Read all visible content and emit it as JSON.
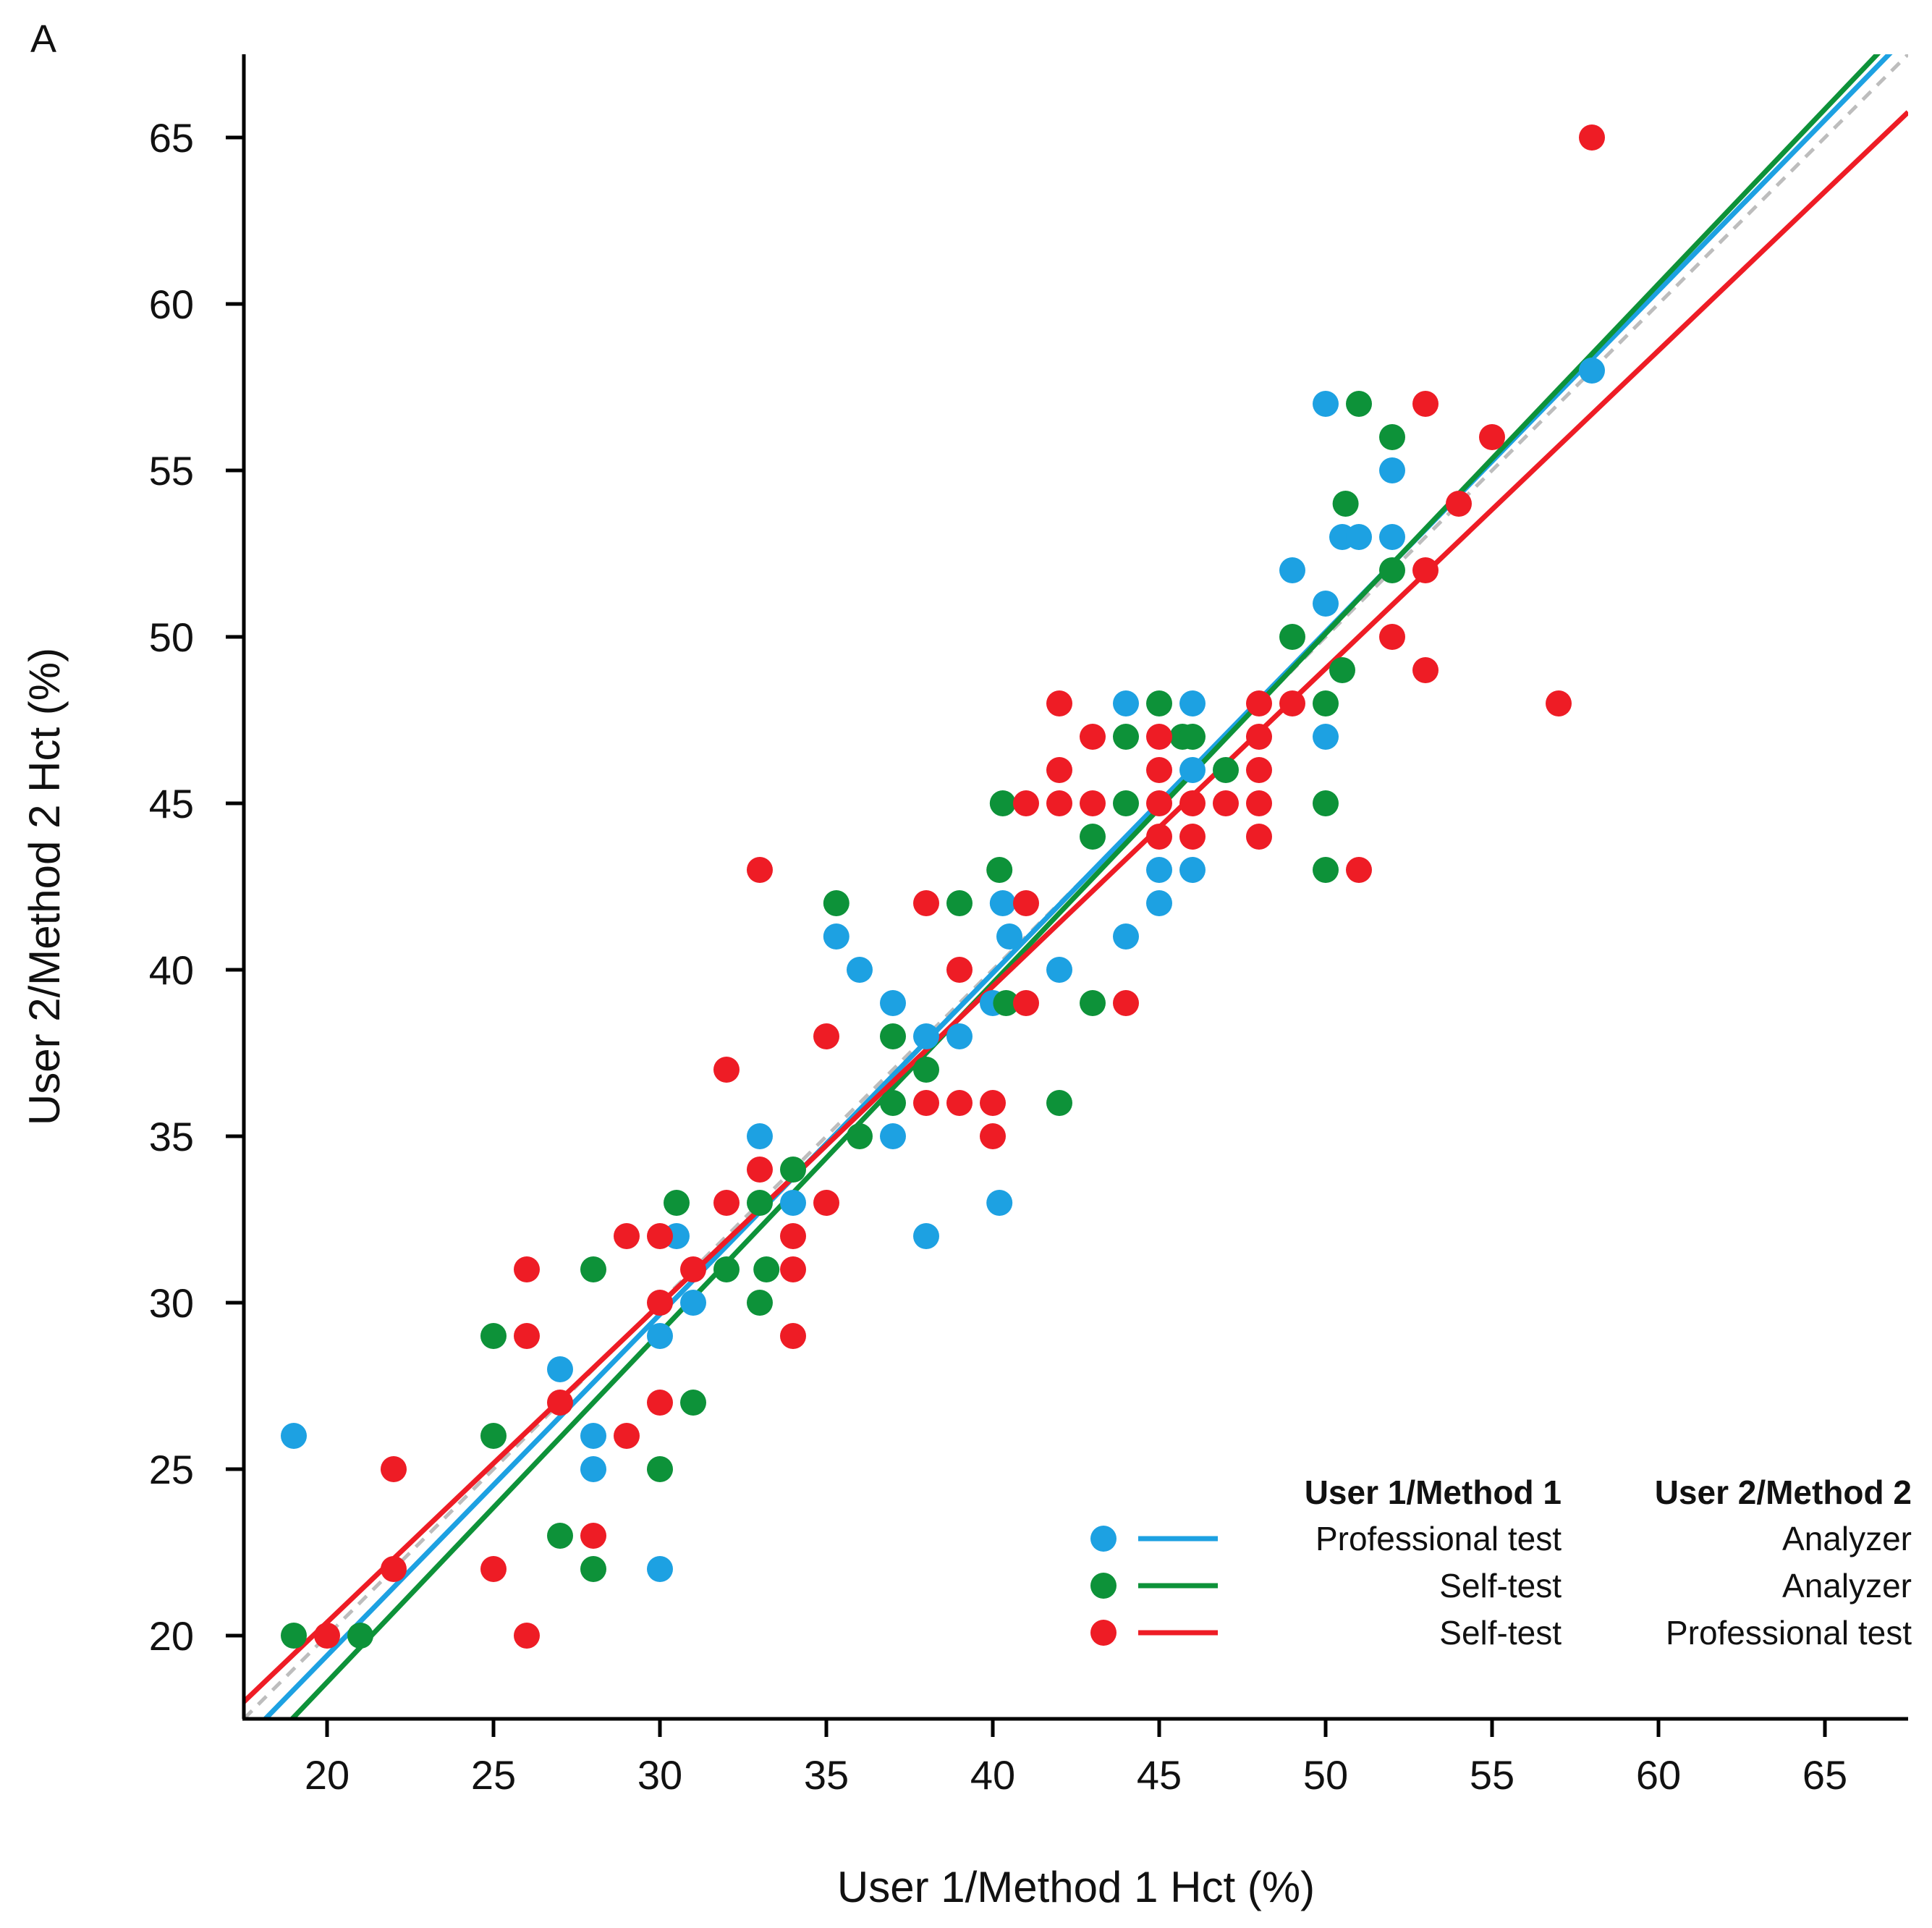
{
  "panel_label": "A",
  "chart_data": {
    "type": "scatter",
    "title": "",
    "xlabel": "User 1/Method 1 Hct (%)",
    "ylabel": "User 2/Method 2 Hct (%)",
    "xlim": [
      17.5,
      67.5
    ],
    "ylim": [
      17.5,
      67.5
    ],
    "xticks": [
      20,
      25,
      30,
      35,
      40,
      45,
      50,
      55,
      60,
      65
    ],
    "yticks": [
      20,
      25,
      30,
      35,
      40,
      45,
      50,
      55,
      60,
      65
    ],
    "identity_line": true,
    "legend": {
      "placement": "bottom-right",
      "header_col1": "User 1/Method 1",
      "header_col2": "User 2/Method 2"
    },
    "series": [
      {
        "name": "Professional test vs Analyzer",
        "method1": "Professional test",
        "method2": "Analyzer",
        "color": "#1da1e2",
        "fit": {
          "slope": 1.025,
          "intercept": -1.1
        },
        "points": [
          [
            19,
            26
          ],
          [
            27,
            28
          ],
          [
            28,
            26
          ],
          [
            28,
            25
          ],
          [
            30,
            29
          ],
          [
            30,
            22
          ],
          [
            30.5,
            32
          ],
          [
            31,
            30
          ],
          [
            33,
            35
          ],
          [
            34,
            33
          ],
          [
            35.3,
            41
          ],
          [
            36,
            40
          ],
          [
            37,
            39
          ],
          [
            37,
            35
          ],
          [
            38,
            38
          ],
          [
            38,
            32
          ],
          [
            39,
            38
          ],
          [
            40,
            39
          ],
          [
            40.2,
            33
          ],
          [
            40.3,
            42
          ],
          [
            40.5,
            41
          ],
          [
            42,
            40
          ],
          [
            44,
            48
          ],
          [
            44,
            41
          ],
          [
            45,
            43
          ],
          [
            45,
            42
          ],
          [
            46,
            48
          ],
          [
            46,
            46
          ],
          [
            46,
            43
          ],
          [
            49,
            52
          ],
          [
            50,
            57
          ],
          [
            50,
            51
          ],
          [
            50,
            47
          ],
          [
            50.5,
            53
          ],
          [
            51,
            53
          ],
          [
            52,
            55
          ],
          [
            52,
            53
          ],
          [
            58,
            58
          ]
        ]
      },
      {
        "name": "Self-test vs Analyzer",
        "method1": "Self-test",
        "method2": "Analyzer",
        "color": "#0d9239",
        "fit": {
          "slope": 1.05,
          "intercept": -2.4
        },
        "points": [
          [
            19,
            20
          ],
          [
            21,
            20
          ],
          [
            25,
            29
          ],
          [
            25,
            26
          ],
          [
            27,
            23
          ],
          [
            28,
            31
          ],
          [
            28,
            22
          ],
          [
            30,
            25
          ],
          [
            30.5,
            33
          ],
          [
            31,
            27
          ],
          [
            32,
            31
          ],
          [
            33,
            33
          ],
          [
            33,
            30
          ],
          [
            33.2,
            31
          ],
          [
            34,
            34
          ],
          [
            35.3,
            42
          ],
          [
            36,
            35
          ],
          [
            37,
            38
          ],
          [
            37,
            36
          ],
          [
            38,
            37
          ],
          [
            39,
            42
          ],
          [
            40.2,
            43
          ],
          [
            40.3,
            45
          ],
          [
            40.4,
            39
          ],
          [
            42,
            36
          ],
          [
            43,
            44
          ],
          [
            43,
            39
          ],
          [
            44,
            47
          ],
          [
            44,
            45
          ],
          [
            45,
            48
          ],
          [
            45.7,
            47
          ],
          [
            46,
            47
          ],
          [
            47,
            46
          ],
          [
            49,
            50
          ],
          [
            50,
            48
          ],
          [
            50,
            45
          ],
          [
            50,
            43
          ],
          [
            50.5,
            49
          ],
          [
            50.6,
            54
          ],
          [
            51,
            57
          ],
          [
            52,
            56
          ],
          [
            52,
            52
          ]
        ]
      },
      {
        "name": "Self-test vs Professional test",
        "method1": "Self-test",
        "method2": "Professional test",
        "color": "#ee1c25",
        "fit": {
          "slope": 0.955,
          "intercept": 1.3
        },
        "points": [
          [
            20,
            20
          ],
          [
            22,
            25
          ],
          [
            22,
            22
          ],
          [
            25,
            22
          ],
          [
            26,
            31
          ],
          [
            26,
            29
          ],
          [
            26,
            20
          ],
          [
            27,
            27
          ],
          [
            28,
            23
          ],
          [
            29,
            32
          ],
          [
            29,
            26
          ],
          [
            30,
            32
          ],
          [
            30,
            30
          ],
          [
            30,
            27
          ],
          [
            31,
            31
          ],
          [
            32,
            37
          ],
          [
            32,
            33
          ],
          [
            33,
            43
          ],
          [
            33,
            34
          ],
          [
            34,
            32
          ],
          [
            34,
            31
          ],
          [
            34,
            29
          ],
          [
            35,
            38
          ],
          [
            35,
            33
          ],
          [
            38,
            42
          ],
          [
            38,
            36
          ],
          [
            39,
            40
          ],
          [
            39,
            36
          ],
          [
            40,
            36
          ],
          [
            40,
            35
          ],
          [
            41,
            45
          ],
          [
            41,
            42
          ],
          [
            41,
            39
          ],
          [
            42,
            48
          ],
          [
            42,
            46
          ],
          [
            42,
            45
          ],
          [
            43,
            47
          ],
          [
            43,
            45
          ],
          [
            44,
            39
          ],
          [
            45,
            47
          ],
          [
            45,
            46
          ],
          [
            45,
            45
          ],
          [
            45,
            44
          ],
          [
            46,
            45
          ],
          [
            46,
            44
          ],
          [
            47,
            45
          ],
          [
            48,
            48
          ],
          [
            48,
            47
          ],
          [
            48,
            46
          ],
          [
            48,
            45
          ],
          [
            48,
            44
          ],
          [
            49,
            48
          ],
          [
            51,
            43
          ],
          [
            52,
            50
          ],
          [
            53,
            57
          ],
          [
            53,
            52
          ],
          [
            53,
            49
          ],
          [
            54,
            54
          ],
          [
            55,
            56
          ],
          [
            57,
            48
          ],
          [
            58,
            65
          ]
        ]
      }
    ]
  }
}
